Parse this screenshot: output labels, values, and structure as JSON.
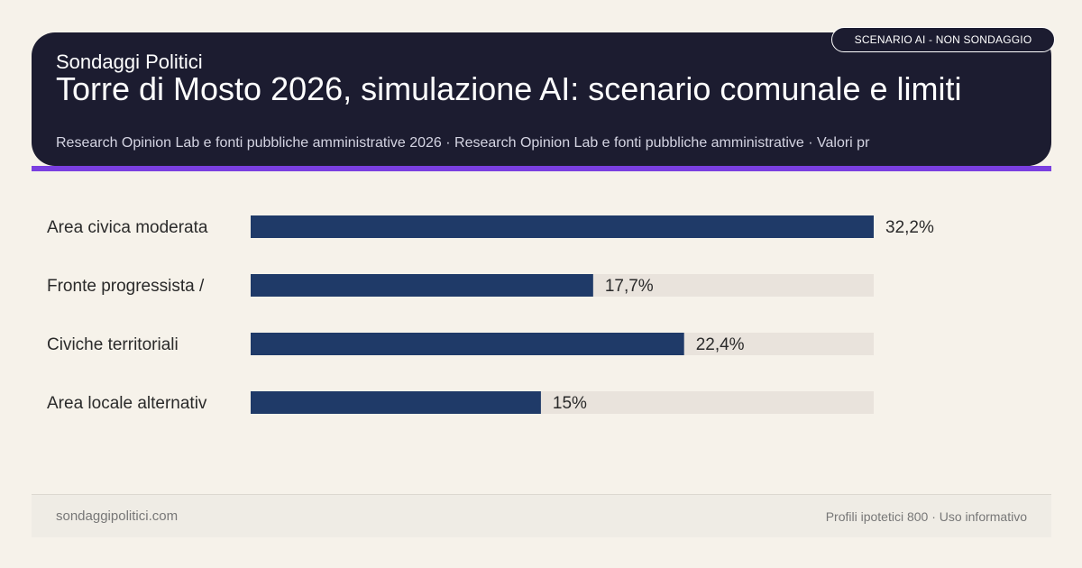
{
  "header": {
    "brand": "Sondaggi Politici",
    "title": "Torre di Mosto 2026, simulazione AI: scenario comunale e limiti",
    "subtitle": "Research Opinion Lab e fonti pubbliche amministrative 2026 · Research Opinion Lab e fonti pubbliche amministrative · Valori pr",
    "badge": "SCENARIO AI - NON SONDAGGIO"
  },
  "colors": {
    "header_bg": "#1c1c30",
    "accent": "#7a3fe0",
    "bar": "#1f3a68",
    "track": "#e9e3dc",
    "background": "#f6f2ea"
  },
  "chart_data": {
    "type": "bar",
    "orientation": "horizontal",
    "categories": [
      "Area civica moderata",
      "Fronte progressista /",
      "Civiche territoriali",
      "Area locale alternativ"
    ],
    "values": [
      32.2,
      17.7,
      22.4,
      15
    ],
    "value_labels": [
      "32,2%",
      "17,7%",
      "22,4%",
      "15%"
    ],
    "xlim": [
      0,
      32.2
    ],
    "title": "",
    "xlabel": "",
    "ylabel": "",
    "grid": false
  },
  "footer": {
    "site": "sondaggipolitici.com",
    "note": "Profili ipotetici 800 · Uso informativo"
  }
}
